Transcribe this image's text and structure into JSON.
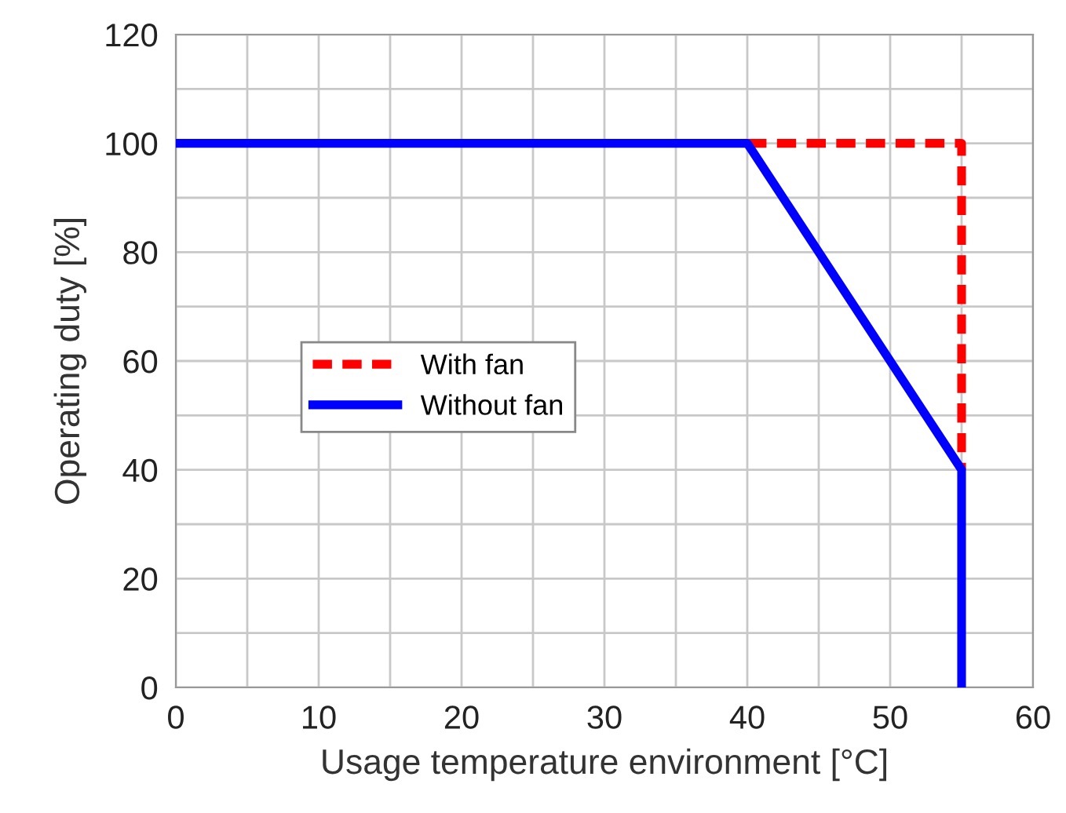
{
  "chart_data": {
    "type": "line",
    "xlabel": "Usage temperature environment [°C]",
    "ylabel": "Operating duty [%]",
    "xlim": [
      0,
      60
    ],
    "ylim": [
      0,
      120
    ],
    "xticks": [
      0,
      {
        "value": 5,
        "label": null
      },
      10,
      {
        "value": 15,
        "label": null
      },
      20,
      {
        "value": 25,
        "label": null
      },
      30,
      {
        "value": 35,
        "label": null
      },
      40,
      {
        "value": 45,
        "label": null
      },
      50,
      {
        "value": 55,
        "label": null
      },
      60
    ],
    "yticks": [
      0,
      {
        "value": 10,
        "label": null
      },
      20,
      {
        "value": 30,
        "label": null
      },
      40,
      {
        "value": 50,
        "label": null
      },
      60,
      {
        "value": 70,
        "label": null
      },
      80,
      {
        "value": 90,
        "label": null
      },
      100,
      {
        "value": 110,
        "label": null
      },
      120
    ],
    "grid": true,
    "legend": "center left",
    "marker": "none",
    "series": [
      {
        "name": "With fan",
        "color": "#ff0000",
        "line_style": "dashed",
        "x": [
          40,
          55,
          55
        ],
        "values": [
          100,
          100,
          40
        ]
      },
      {
        "name": "Without fan",
        "color": "#0000ff",
        "line_style": "solid",
        "x": [
          0,
          40,
          55,
          55
        ],
        "values": [
          100,
          100,
          40,
          0
        ]
      }
    ]
  }
}
